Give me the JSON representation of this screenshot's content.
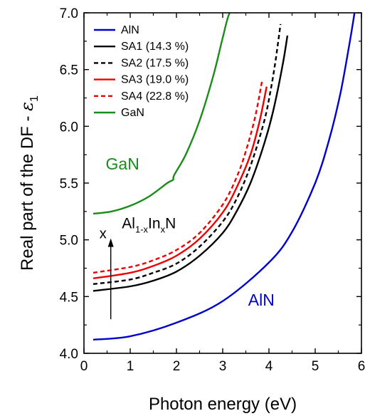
{
  "chart_data": {
    "type": "line",
    "xlabel": "Photon energy (eV)",
    "ylabel_main": "Real part of the DF - ",
    "ylabel_symbol": "ε",
    "ylabel_sub": "1",
    "xlim": [
      0,
      6
    ],
    "ylim": [
      4.0,
      7.0
    ],
    "x_ticks": [
      "0",
      "1",
      "2",
      "3",
      "4",
      "5",
      "6"
    ],
    "y_ticks": [
      "4.0",
      "4.5",
      "5.0",
      "5.5",
      "6.0",
      "6.5",
      "7.0"
    ],
    "grid": false,
    "legend_position": "top-left",
    "series": [
      {
        "name": "AlN",
        "color": "#0000cc",
        "dash": "solid",
        "x": [
          0.2,
          1.0,
          2.0,
          3.0,
          4.0,
          4.5,
          5.0,
          5.3,
          5.55,
          5.75,
          5.85
        ],
        "y": [
          4.12,
          4.15,
          4.27,
          4.46,
          4.8,
          5.07,
          5.5,
          5.88,
          6.3,
          6.75,
          7.0
        ]
      },
      {
        "name": "SA1 (14.3 %)",
        "color": "#000000",
        "dash": "solid",
        "x": [
          0.2,
          1.0,
          1.5,
          2.0,
          2.5,
          3.0,
          3.3,
          3.6,
          3.9,
          4.1,
          4.3,
          4.4
        ],
        "y": [
          4.55,
          4.59,
          4.64,
          4.72,
          4.86,
          5.06,
          5.25,
          5.5,
          5.85,
          6.15,
          6.55,
          6.8
        ]
      },
      {
        "name": "SA2 (17.5 %)",
        "color": "#000000",
        "dash": "dashed",
        "x": [
          0.2,
          1.0,
          1.5,
          2.0,
          2.5,
          3.0,
          3.3,
          3.6,
          3.9,
          4.05,
          4.15,
          4.25
        ],
        "y": [
          4.61,
          4.65,
          4.71,
          4.79,
          4.94,
          5.16,
          5.36,
          5.65,
          6.05,
          6.35,
          6.6,
          6.9
        ]
      },
      {
        "name": "SA3 (19.0 %)",
        "color": "#ee0000",
        "dash": "solid",
        "x": [
          0.2,
          1.0,
          1.5,
          2.0,
          2.5,
          3.0,
          3.3,
          3.6,
          3.8,
          3.95
        ],
        "y": [
          4.66,
          4.71,
          4.77,
          4.86,
          5.01,
          5.24,
          5.46,
          5.75,
          6.05,
          6.35
        ]
      },
      {
        "name": "SA4 (22.8 %)",
        "color": "#ee0000",
        "dash": "dashed",
        "x": [
          0.2,
          1.0,
          1.5,
          2.0,
          2.5,
          3.0,
          3.3,
          3.5,
          3.7,
          3.85
        ],
        "y": [
          4.71,
          4.76,
          4.82,
          4.91,
          5.06,
          5.31,
          5.55,
          5.78,
          6.08,
          6.4
        ]
      },
      {
        "name": "GaN",
        "color": "#1a8c1a",
        "dash": "solid",
        "x": [
          0.2,
          0.6,
          1.0,
          1.4,
          1.8,
          1.93,
          1.95,
          2.2,
          2.5,
          2.8,
          3.0,
          3.15,
          3.3
        ],
        "y": [
          5.23,
          5.25,
          5.3,
          5.38,
          5.5,
          5.53,
          5.57,
          5.75,
          6.05,
          6.45,
          6.78,
          7.0,
          7.0
        ]
      }
    ],
    "annotations": {
      "gan_label": {
        "text": "GaN",
        "color": "#1a8c1a",
        "x": 0.47,
        "y": 5.62
      },
      "aln_label": {
        "text": "AlN",
        "color": "#0000cc",
        "x": 3.55,
        "y": 4.42
      },
      "formula": {
        "parts": [
          "Al",
          "1-x",
          "In",
          "x",
          "N"
        ],
        "x": 0.82,
        "y": 5.1
      },
      "arrow": {
        "label": "x",
        "x": 0.58,
        "y_from": 4.3,
        "y_to": 5.0
      }
    }
  }
}
